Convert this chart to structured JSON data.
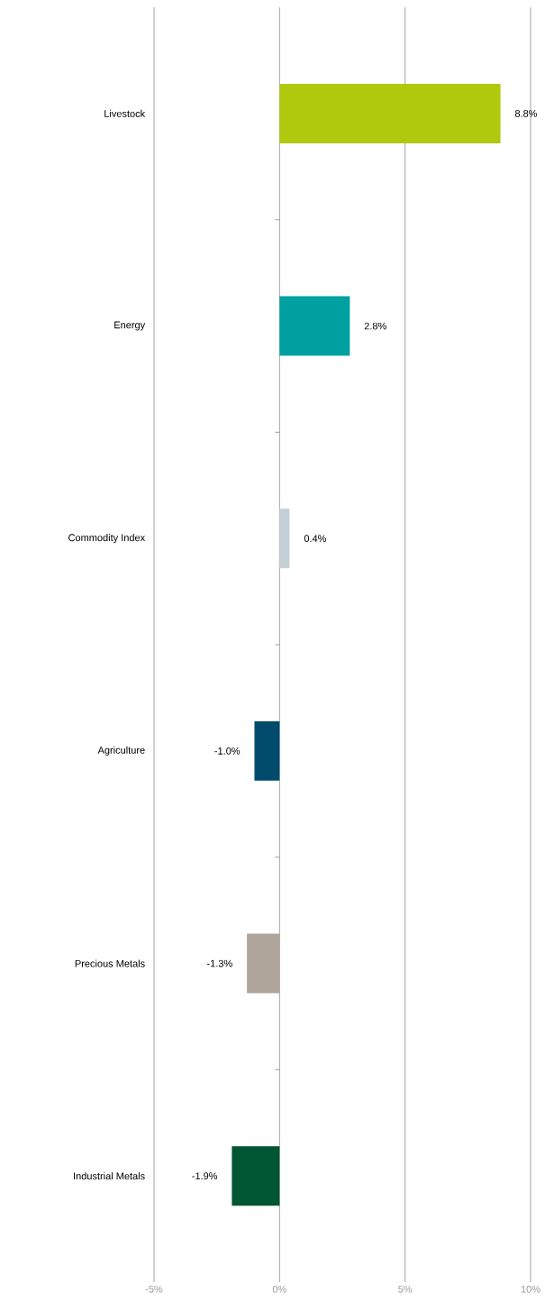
{
  "chart_data": {
    "type": "bar",
    "orientation": "horizontal",
    "categories": [
      "Livestock",
      "Energy",
      "Commodity Index",
      "Agriculture",
      "Precious Metals",
      "Industrial Metals"
    ],
    "values": [
      8.8,
      2.8,
      0.4,
      -1.0,
      -1.3,
      -1.9
    ],
    "colors": [
      "#b0c90d",
      "#00a0a0",
      "#c5d0d6",
      "#004b6b",
      "#aea49a",
      "#005533"
    ],
    "value_labels": [
      "8.8%",
      "2.8%",
      "0.4%",
      "-1.0%",
      "-1.3%",
      "-1.9%"
    ],
    "xlim": [
      -5,
      10
    ],
    "xticks": [
      {
        "value": -5,
        "label": "-5%"
      },
      {
        "value": 0,
        "label": "0%"
      },
      {
        "value": 5,
        "label": "5%"
      },
      {
        "value": 10,
        "label": "10%"
      }
    ],
    "grid": "x"
  }
}
